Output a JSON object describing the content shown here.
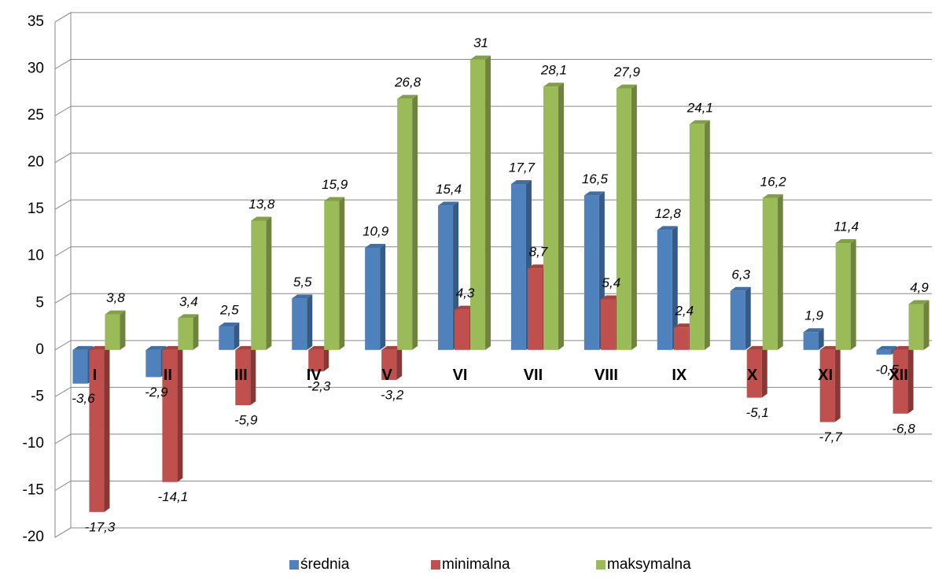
{
  "chart_data": {
    "type": "bar",
    "categories": [
      "I",
      "II",
      "III",
      "IV",
      "V",
      "VI",
      "VII",
      "VIII",
      "IX",
      "X",
      "XI",
      "XII"
    ],
    "series": [
      {
        "name": "średnia",
        "color": "#4f81bd",
        "values": [
          -3.6,
          -2.9,
          2.5,
          5.5,
          10.9,
          15.4,
          17.7,
          16.5,
          12.8,
          6.3,
          1.9,
          -0.5
        ],
        "value_labels": [
          "-3,6",
          "-2,9",
          "2,5",
          "5,5",
          "10,9",
          "15,4",
          "17,7",
          "16,5",
          "12,8",
          "6,3",
          "1,9",
          "-0,5"
        ]
      },
      {
        "name": "minimalna",
        "color": "#c0504d",
        "values": [
          -17.3,
          -14.1,
          -5.9,
          -2.3,
          -3.2,
          4.3,
          8.7,
          5.4,
          2.4,
          -5.1,
          -7.7,
          -6.8
        ],
        "value_labels": [
          "-17,3",
          "-14,1",
          "-5,9",
          "-2,3",
          "-3,2",
          "4,3",
          "8,7",
          "5,4",
          "2,4",
          "-5,1",
          "-7,7",
          "-6,8"
        ]
      },
      {
        "name": "maksymalna",
        "color": "#9bbb59",
        "values": [
          3.8,
          3.4,
          13.8,
          15.9,
          26.8,
          31,
          28.1,
          27.9,
          24.1,
          16.2,
          11.4,
          4.9
        ],
        "value_labels": [
          "3,8",
          "3,4",
          "13,8",
          "15,9",
          "26,8",
          "31",
          "28,1",
          "27,9",
          "24,1",
          "16,2",
          "11,4",
          "4,9"
        ]
      }
    ],
    "ylim": [
      -20,
      35
    ],
    "yticks": [
      -20,
      -15,
      -10,
      -5,
      0,
      5,
      10,
      15,
      20,
      25,
      30,
      35
    ],
    "grid": true,
    "legend": "bottom"
  }
}
